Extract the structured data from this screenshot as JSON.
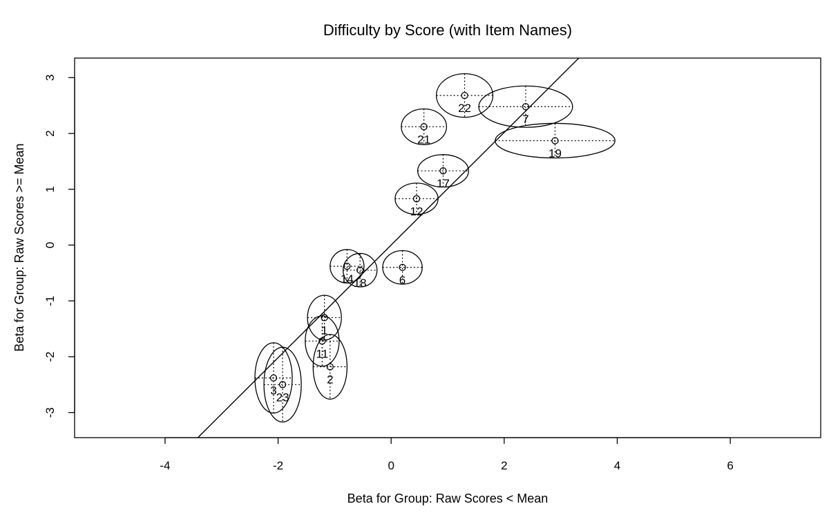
{
  "chart_data": {
    "type": "scatter",
    "title": "Difficulty by Score (with Item Names)",
    "xlabel": "Beta for Group: Raw Scores < Mean",
    "ylabel": "Beta for Group: Raw Scores >= Mean",
    "xlim": [
      -5.6,
      7.6
    ],
    "ylim": [
      -3.45,
      3.35
    ],
    "xticks": [
      "-4",
      "-2",
      "0",
      "2",
      "4",
      "6"
    ],
    "yticks": [
      "-3",
      "-2",
      "-1",
      "0",
      "1",
      "2",
      "3"
    ],
    "reference_line": {
      "from": [
        -3.42,
        -3.45
      ],
      "to": [
        3.32,
        3.35
      ]
    },
    "points": [
      {
        "label": "22",
        "x": 1.3,
        "y": 2.68,
        "x_halfwidth": 0.5,
        "y_halfheight": 0.39
      },
      {
        "label": "7",
        "x": 2.38,
        "y": 2.48,
        "x_halfwidth": 0.83,
        "y_halfheight": 0.37
      },
      {
        "label": "21",
        "x": 0.58,
        "y": 2.12,
        "x_halfwidth": 0.4,
        "y_halfheight": 0.32
      },
      {
        "label": "19",
        "x": 2.9,
        "y": 1.87,
        "x_halfwidth": 1.06,
        "y_halfheight": 0.31
      },
      {
        "label": "17",
        "x": 0.92,
        "y": 1.33,
        "x_halfwidth": 0.45,
        "y_halfheight": 0.29
      },
      {
        "label": "12",
        "x": 0.45,
        "y": 0.83,
        "x_halfwidth": 0.38,
        "y_halfheight": 0.28
      },
      {
        "label": "14",
        "x": -0.78,
        "y": -0.38,
        "x_halfwidth": 0.3,
        "y_halfheight": 0.3
      },
      {
        "label": "18",
        "x": -0.55,
        "y": -0.45,
        "x_halfwidth": 0.3,
        "y_halfheight": 0.3
      },
      {
        "label": "6",
        "x": 0.2,
        "y": -0.4,
        "x_halfwidth": 0.35,
        "y_halfheight": 0.3
      },
      {
        "label": "1",
        "x": -1.18,
        "y": -1.3,
        "x_halfwidth": 0.3,
        "y_halfheight": 0.4
      },
      {
        "label": "11",
        "x": -1.22,
        "y": -1.72,
        "x_halfwidth": 0.3,
        "y_halfheight": 0.45
      },
      {
        "label": "2",
        "x": -1.08,
        "y": -2.18,
        "x_halfwidth": 0.3,
        "y_halfheight": 0.58
      },
      {
        "label": "3",
        "x": -2.08,
        "y": -2.38,
        "x_halfwidth": 0.33,
        "y_halfheight": 0.63
      },
      {
        "label": "23",
        "x": -1.92,
        "y": -2.5,
        "x_halfwidth": 0.33,
        "y_halfheight": 0.67
      }
    ]
  }
}
